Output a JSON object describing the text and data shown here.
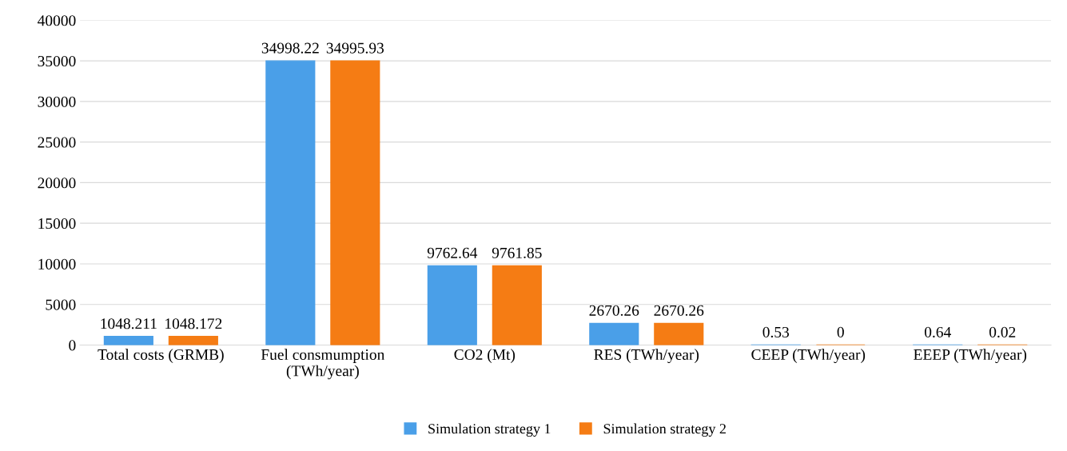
{
  "chart_data": {
    "type": "bar",
    "categories": [
      "Total costs (GRMB)",
      "Fuel consmumption\n(TWh/year)",
      "CO2 (Mt)",
      "RES (TWh/year)",
      "CEEP (TWh/year)",
      "EEEP (TWh/year)"
    ],
    "series": [
      {
        "name": "Simulation strategy 1",
        "color": "#4a9fe8",
        "values": [
          1048.211,
          34998.22,
          9762.64,
          2670.26,
          0.53,
          0.64
        ]
      },
      {
        "name": "Simulation strategy 2",
        "color": "#f57c14",
        "values": [
          1048.172,
          34995.93,
          9761.85,
          2670.26,
          0,
          0.02
        ]
      }
    ],
    "ylim": [
      0,
      40000
    ],
    "yticks": [
      0,
      5000,
      10000,
      15000,
      20000,
      25000,
      30000,
      35000,
      40000
    ],
    "grid": "y",
    "legend": "bottom",
    "data_labels": true
  }
}
